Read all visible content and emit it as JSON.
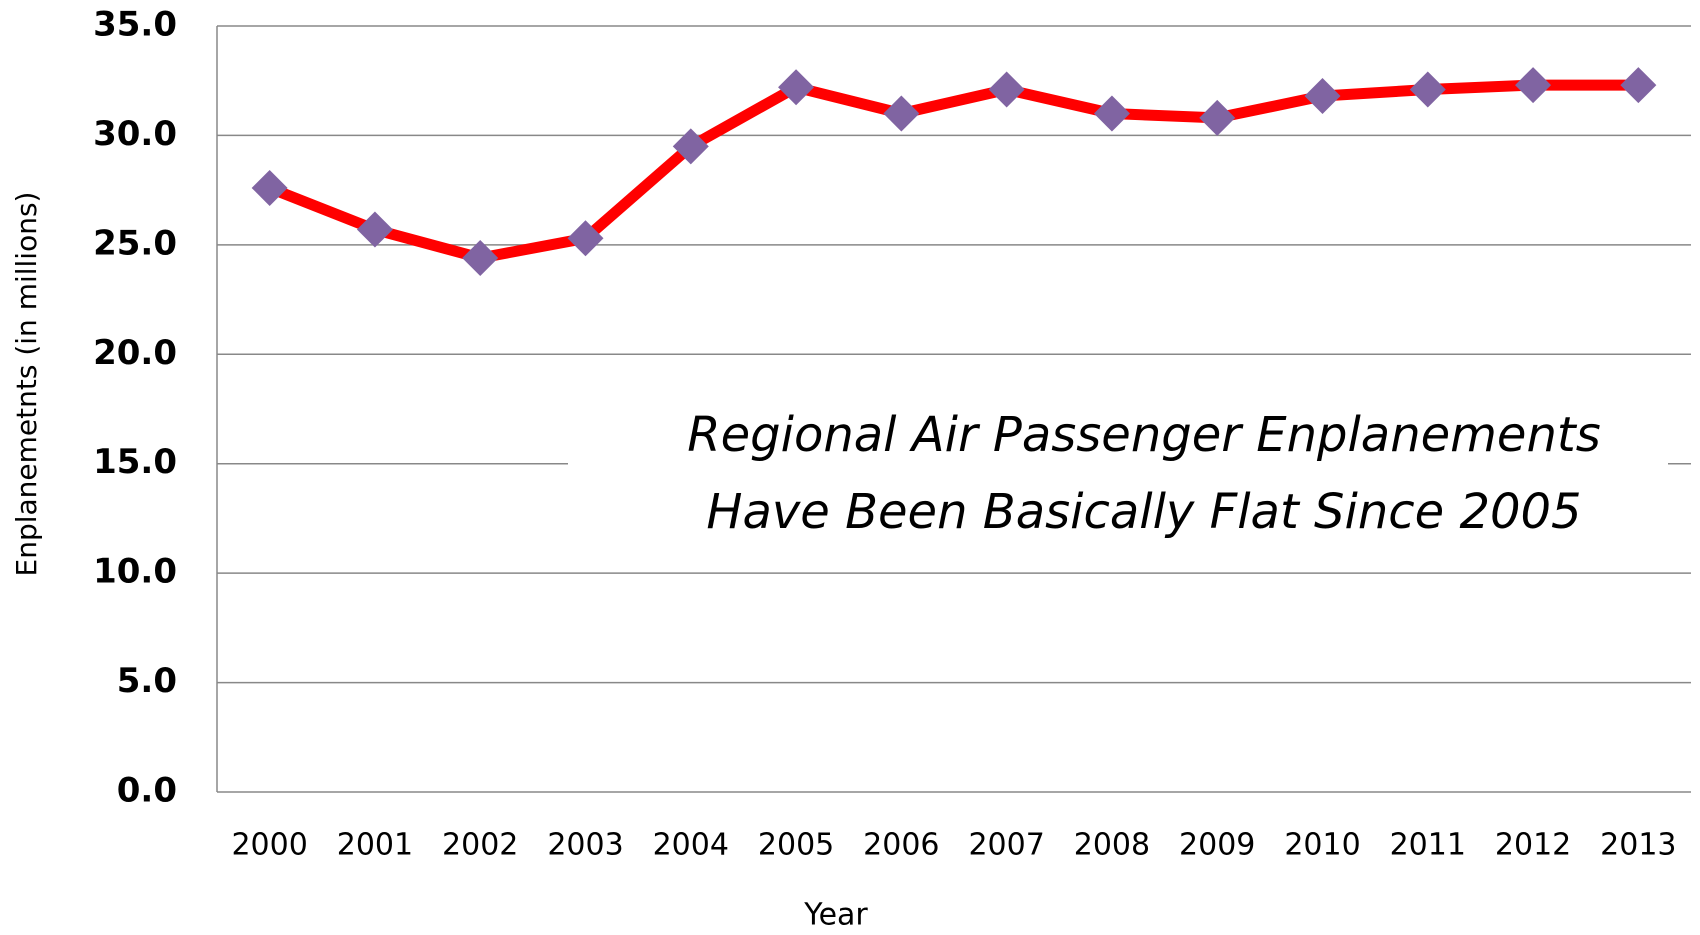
{
  "chart_data": {
    "type": "line",
    "xlabel": "Year",
    "ylabel": "Enplanemetnts (in millions)",
    "annotation": [
      "Regional Air Passenger Enplanements",
      "Have Been Basically Flat Since 2005"
    ],
    "categories": [
      "2000",
      "2001",
      "2002",
      "2003",
      "2004",
      "2005",
      "2006",
      "2007",
      "2008",
      "2009",
      "2010",
      "2011",
      "2012",
      "2013"
    ],
    "series": [
      {
        "color": "#ff0000",
        "marker_color": "#8064a2",
        "values": [
          27.6,
          25.7,
          24.4,
          25.3,
          29.5,
          32.2,
          31.0,
          32.1,
          31.0,
          30.8,
          31.8,
          32.1,
          32.3,
          32.3
        ]
      }
    ],
    "ylim": [
      0,
      35
    ],
    "yticks": [
      {
        "value": 0,
        "label": "0.0"
      },
      {
        "value": 5,
        "label": "5.0"
      },
      {
        "value": 10,
        "label": "10.0"
      },
      {
        "value": 15,
        "label": "15.0"
      },
      {
        "value": 20,
        "label": "20.0"
      },
      {
        "value": 25,
        "label": "25.0"
      },
      {
        "value": 30,
        "label": "30.0"
      },
      {
        "value": 35,
        "label": "35.0"
      }
    ],
    "grid": true
  }
}
